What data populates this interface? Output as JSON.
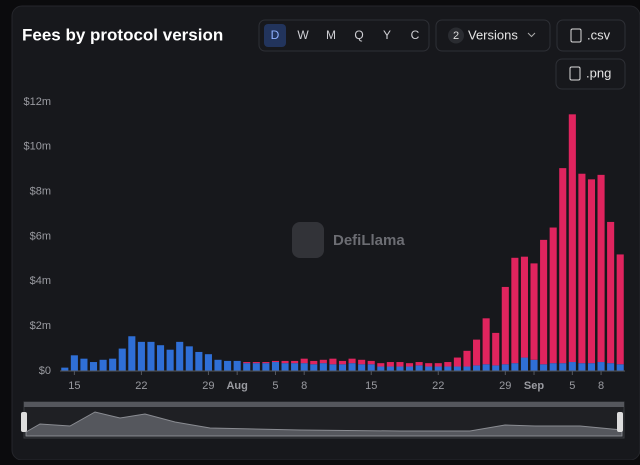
{
  "toolbar": {
    "intervals": [
      "D",
      "W",
      "M",
      "Q",
      "Y",
      "C"
    ],
    "versions_count": 2,
    "versions_label": "Versions",
    "csv": ".csv",
    "png": ".png"
  },
  "watermark": "DefiLlama",
  "chart_data": {
    "type": "stacked-bar",
    "title": "Fees by protocol version",
    "categories": [
      null,
      "15",
      null,
      null,
      null,
      null,
      null,
      null,
      "22",
      null,
      null,
      null,
      null,
      null,
      null,
      "29",
      null,
      null,
      "Aug",
      null,
      null,
      null,
      "5",
      null,
      null,
      "8",
      null,
      null,
      null,
      null,
      null,
      null,
      "15",
      null,
      null,
      null,
      null,
      null,
      null,
      "22",
      null,
      null,
      null,
      null,
      null,
      null,
      "29",
      null,
      null,
      "Sep",
      null,
      null,
      null,
      "5",
      null,
      null,
      "8",
      null,
      null
    ],
    "series": [
      {
        "color": "#2f6fd6",
        "values": [
          0.15,
          0.7,
          0.55,
          0.4,
          0.5,
          0.55,
          1.0,
          1.55,
          1.3,
          1.3,
          1.15,
          0.95,
          1.3,
          1.1,
          0.85,
          0.75,
          0.5,
          0.45,
          0.45,
          0.35,
          0.35,
          0.35,
          0.4,
          0.35,
          0.35,
          0.35,
          0.3,
          0.35,
          0.3,
          0.3,
          0.35,
          0.3,
          0.3,
          0.2,
          0.2,
          0.2,
          0.2,
          0.25,
          0.2,
          0.2,
          0.2,
          0.2,
          0.2,
          0.25,
          0.3,
          0.25,
          0.3,
          0.35,
          0.6,
          0.5,
          0.3,
          0.35,
          0.35,
          0.4,
          0.35,
          0.35,
          0.4,
          0.35,
          0.3
        ]
      },
      {
        "color": "#e0245e",
        "values": [
          0,
          0,
          0,
          0,
          0,
          0,
          0,
          0,
          0,
          0,
          0,
          0,
          0,
          0,
          0,
          0,
          0,
          0,
          0,
          0.05,
          0.05,
          0.05,
          0.05,
          0.1,
          0.1,
          0.2,
          0.15,
          0.15,
          0.25,
          0.15,
          0.2,
          0.2,
          0.15,
          0.15,
          0.2,
          0.2,
          0.15,
          0.15,
          0.15,
          0.15,
          0.2,
          0.4,
          0.7,
          1.15,
          2.05,
          1.45,
          3.45,
          4.7,
          4.5,
          4.3,
          5.55,
          6.05,
          8.7,
          11.05,
          8.45,
          8.2,
          8.35,
          6.3,
          4.9
        ]
      }
    ],
    "ylim": [
      0,
      12
    ],
    "yticks": [
      {
        "value": 0,
        "label": "$0"
      },
      {
        "value": 2,
        "label": "$2m"
      },
      {
        "value": 4,
        "label": "$4m"
      },
      {
        "value": 6,
        "label": "$6m"
      },
      {
        "value": 8,
        "label": "$8m"
      },
      {
        "value": 10,
        "label": "$10m"
      },
      {
        "value": 12,
        "label": "$12m"
      }
    ],
    "grid": false
  }
}
